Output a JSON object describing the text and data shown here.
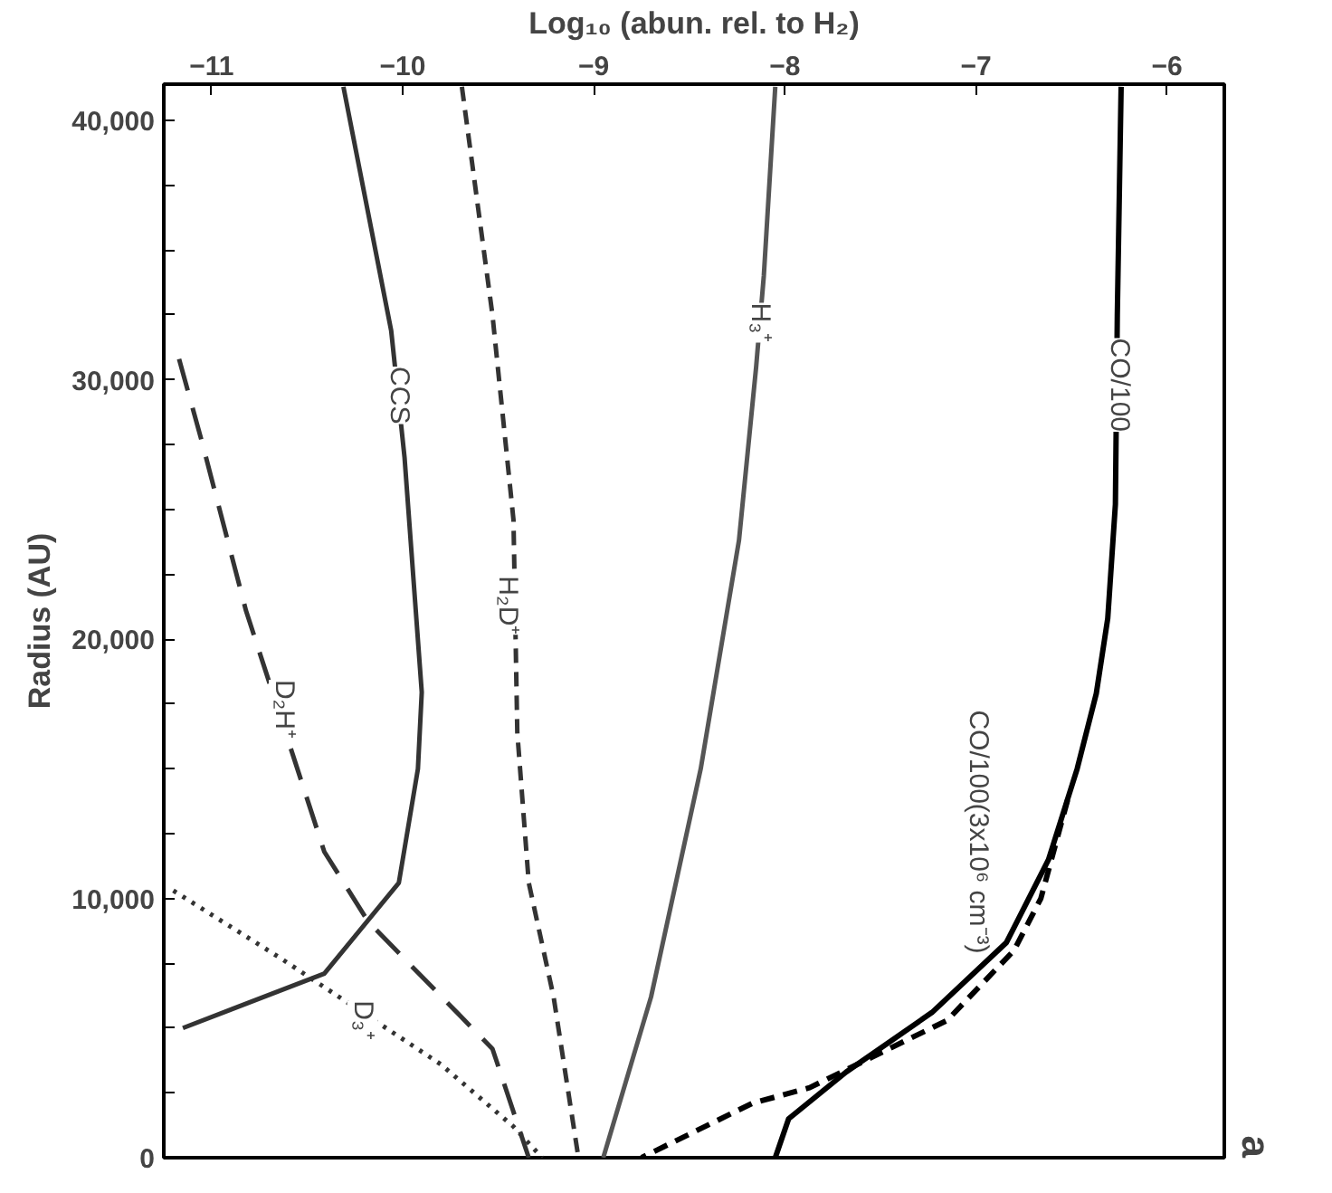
{
  "chart_data": {
    "type": "line",
    "xlabel": "Log₁₀ (abun. rel. to H₂)",
    "ylabel": "Radius (AU)",
    "xlim": [
      -11.25,
      -5.7
    ],
    "ylim": [
      0,
      41400
    ],
    "xticks": [
      -11,
      -10,
      -9,
      -8,
      -7,
      -6
    ],
    "yticks": [
      0,
      {
        "value": 2500,
        "label": null
      },
      {
        "value": 5000,
        "label": null
      },
      {
        "value": 7500,
        "label": null
      },
      {
        "value": 10000,
        "label": "10,000"
      },
      {
        "value": 12500,
        "label": null
      },
      {
        "value": 15000,
        "label": null
      },
      {
        "value": 17500,
        "label": null
      },
      {
        "value": 20000,
        "label": "20,000"
      },
      {
        "value": 22500,
        "label": null
      },
      {
        "value": 25000,
        "label": null
      },
      {
        "value": 27500,
        "label": null
      },
      {
        "value": 30000,
        "label": "30,000"
      },
      {
        "value": 32500,
        "label": null
      },
      {
        "value": 35000,
        "label": null
      },
      {
        "value": 37500,
        "label": null
      },
      {
        "value": 40000,
        "label": "40,000"
      }
    ],
    "grid": false,
    "marker": "none",
    "series": [
      {
        "color": "#000000",
        "line_style": "solid",
        "x": [
          -6.24,
          -6.26,
          -6.27,
          -6.31,
          -6.37,
          -6.47,
          -6.62,
          -6.84,
          -7.23,
          -7.68,
          -7.98,
          -8.05
        ],
        "values": [
          41300,
          32500,
          25200,
          20800,
          17900,
          15000,
          11500,
          8300,
          5600,
          3300,
          1500,
          0
        ]
      },
      {
        "color": "#000000",
        "line_style": "dashed",
        "x": [
          -6.52,
          -6.66,
          -6.8,
          -7.15,
          -7.87,
          -8.17,
          -8.75
        ],
        "values": [
          13800,
          10000,
          8000,
          5300,
          2700,
          2100,
          0
        ]
      },
      {
        "color": "#555555",
        "line_style": "solid",
        "x": [
          -8.05,
          -8.11,
          -8.15,
          -8.24,
          -8.44,
          -8.7,
          -8.95
        ],
        "values": [
          41300,
          34000,
          30500,
          23800,
          15000,
          6200,
          0
        ]
      },
      {
        "color": "#333333",
        "line_style": "dashed",
        "x": [
          -9.69,
          -9.53,
          -9.42,
          -9.4,
          -9.34,
          -9.21,
          -9.08
        ],
        "values": [
          41300,
          32500,
          24600,
          16400,
          10600,
          6200,
          0
        ]
      },
      {
        "color": "#333333",
        "line_style": "solid",
        "x": [
          -10.31,
          -10.06,
          -9.99,
          -9.9,
          -9.92,
          -10.02,
          -10.41,
          -11.15
        ],
        "values": [
          41300,
          31900,
          27000,
          17950,
          15000,
          10600,
          7100,
          5000
        ]
      },
      {
        "color": "#333333",
        "line_style": "longdash",
        "x": [
          -11.17,
          -11.05,
          -10.82,
          -10.41,
          -10.18,
          -9.53,
          -9.34
        ],
        "values": [
          30800,
          27600,
          21100,
          11800,
          9100,
          4200,
          0
        ]
      },
      {
        "color": "#333333",
        "line_style": "dotted",
        "x": [
          -11.2,
          -10.64,
          -9.8,
          -9.42,
          -9.27
        ],
        "values": [
          10300,
          7700,
          3600,
          1200,
          0
        ]
      }
    ],
    "annotations": [
      "a",
      {
        "text": "CO/100",
        "x": -6.25,
        "y": 29800
      },
      "CO/100(3x10⁶ cm⁻³)",
      {
        "text": "H₃⁺",
        "x": -8.13,
        "y": 32200
      },
      {
        "text": "H₂D⁺",
        "x": -9.45,
        "y": 21300
      },
      {
        "text": "CCS",
        "x": -10.02,
        "y": 29400
      },
      {
        "text": "D₂H⁺",
        "x": -10.62,
        "y": 17300
      },
      {
        "text": "D₃⁺",
        "x": -10.21,
        "y": 5300
      }
    ]
  }
}
